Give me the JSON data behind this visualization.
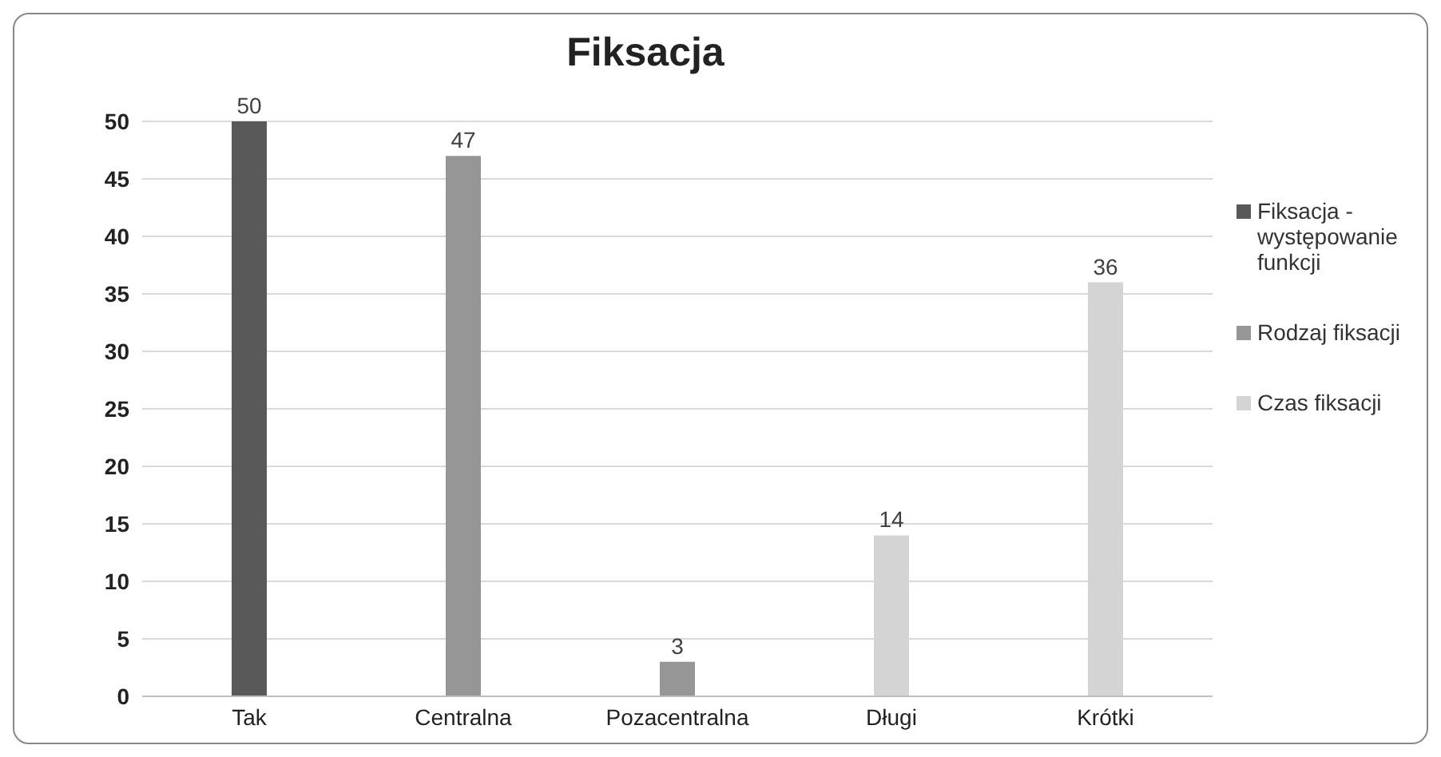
{
  "chart_data": {
    "type": "bar",
    "title": "Fiksacja",
    "categories": [
      "Tak",
      "Centralna",
      "Pozacentralna",
      "Długi",
      "Krótki"
    ],
    "series": [
      {
        "name": "Fiksacja - występowanie funkcji",
        "color": "#595959",
        "values": [
          50,
          null,
          null,
          null,
          null
        ]
      },
      {
        "name": "Rodzaj fiksacji",
        "color": "#969696",
        "values": [
          null,
          47,
          3,
          null,
          null
        ]
      },
      {
        "name": "Czas fiksacji",
        "color": "#d4d4d4",
        "values": [
          null,
          null,
          null,
          14,
          36
        ]
      }
    ],
    "stacked": true,
    "ylim": [
      0,
      50
    ],
    "yticks": [
      0,
      5,
      10,
      15,
      20,
      25,
      30,
      35,
      40,
      45,
      50
    ],
    "grid": "y",
    "legend": "right",
    "data_labels": true
  }
}
